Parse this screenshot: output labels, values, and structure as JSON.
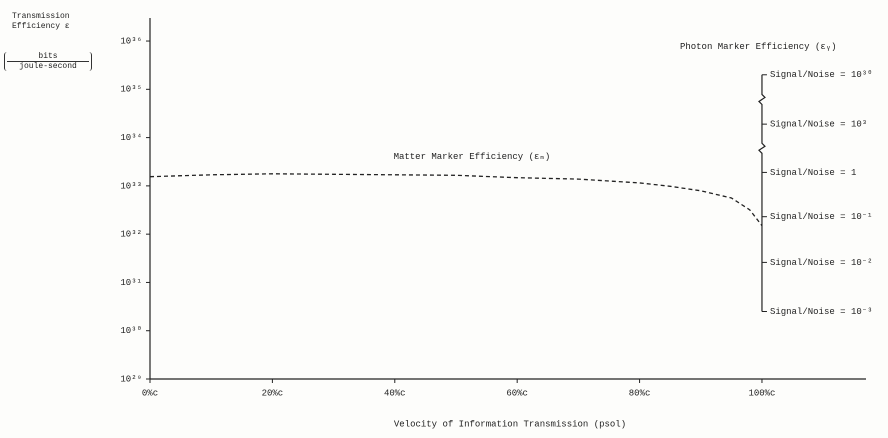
{
  "chart_data": {
    "type": "line",
    "y_label": "Transmission Efficiency ε",
    "y_unit": {
      "numerator": "bits",
      "denominator": "joule-second"
    },
    "x_label": "Velocity of Information Transmission (psol)",
    "xlim": [
      0,
      117
    ],
    "xticks": [
      {
        "value": 0,
        "label": "0%c"
      },
      {
        "value": 20,
        "label": "20%c"
      },
      {
        "value": 40,
        "label": "40%c"
      },
      {
        "value": 60,
        "label": "60%c"
      },
      {
        "value": 80,
        "label": "80%c"
      },
      {
        "value": 100,
        "label": "100%c"
      }
    ],
    "ylog": true,
    "ylim": [
      1e+29,
      3e+36
    ],
    "yticks": [
      {
        "value": 1e+29,
        "label": "10²⁹"
      },
      {
        "value": 1e+30,
        "label": "10³⁰"
      },
      {
        "value": 1e+31,
        "label": "10³¹"
      },
      {
        "value": 1e+32,
        "label": "10³²"
      },
      {
        "value": 1e+33,
        "label": "10³³"
      },
      {
        "value": 1e+34,
        "label": "10³⁴"
      },
      {
        "value": 1e+35,
        "label": "10³⁵"
      },
      {
        "value": 1e+36,
        "label": "10³⁶"
      }
    ],
    "series": [
      {
        "name": "Matter Marker Efficiency (εₘ)",
        "color": "#222222",
        "dashed": true,
        "x": [
          0,
          10,
          20,
          30,
          40,
          50,
          60,
          70,
          80,
          85,
          90,
          95,
          98,
          100
        ],
        "values": [
          1.55e+33,
          1.7e+33,
          1.78e+33,
          1.74e+33,
          1.7e+33,
          1.66e+33,
          1.48e+33,
          1.38e+33,
          1.15e+33,
          9.8e+32,
          7.9e+32,
          5.6e+32,
          3.2e+32,
          1.5e+32
        ]
      }
    ],
    "photon_marker": {
      "name": "Photon Marker Efficiency (εᵧ)",
      "color": "#222222",
      "x": 100,
      "values": [
        2e+35,
        1.9e+34,
        1.9e+33,
        2.3e+32,
        2.6e+31,
        2.5e+30
      ],
      "labels": [
        "Signal/Noise = 10³⁰",
        "Signal/Noise = 10³",
        "Signal/Noise = 1",
        "Signal/Noise = 10⁻¹",
        "Signal/Noise = 10⁻²",
        "Signal/Noise = 10⁻³"
      ]
    }
  }
}
